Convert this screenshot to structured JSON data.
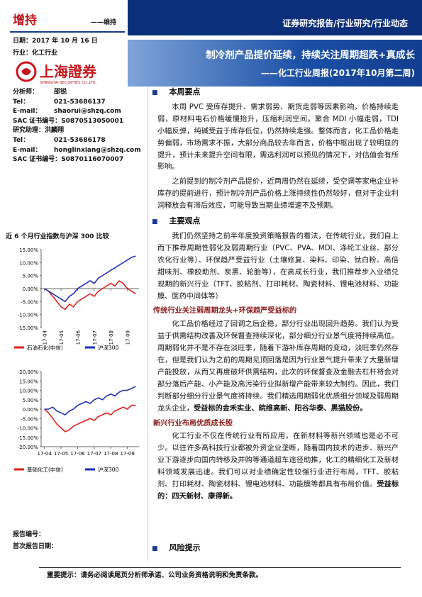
{
  "header": {
    "rating": "增持",
    "rating_change": "——维持",
    "date": "日期：2017 年 10 月 16 日",
    "industry": "行业：化工行业",
    "logo": "上海證券",
    "logo_en": "SHANGHAI SECURITIES CO.,LTD.",
    "category": "证券研究报告/行业研究/行业动态",
    "title": "制冷剂产品提价延续，持续关注周期超跌+真成长",
    "subtitle": "——化工行业周报(2017年10月第二周)"
  },
  "analysts": [
    [
      "分析师：",
      "邵锐"
    ],
    [
      "Tel：",
      "021-53686137"
    ],
    [
      "E-mail：",
      "shaorui@shzq.com"
    ],
    [
      "SAC 证书编号：",
      "S0870513050001"
    ],
    [
      "研究助理：洪麟翔",
      ""
    ],
    [
      "Tel：",
      "021-53686178"
    ],
    [
      "E-mail：",
      "honglinxiang@shzq.com"
    ],
    [
      "SAC 证书编号：",
      "S0870116070007"
    ]
  ],
  "charts_title": "近 6 个月行业指数与沪深 300 比较",
  "chart_data": [
    {
      "type": "line",
      "x": [
        4,
        4.25,
        4.5,
        4.75,
        5,
        5.25,
        5.5,
        5.75,
        6,
        6.25,
        6.5,
        6.75,
        7,
        7.25,
        7.5,
        7.75,
        8,
        8.25,
        8.5,
        8.75,
        9,
        9.25,
        9.5
      ],
      "xlim": [
        3.8,
        9.7
      ],
      "xticks": [
        {
          "value": 4,
          "label": "17-04"
        },
        {
          "value": 5,
          "label": "17-05"
        },
        {
          "value": 6,
          "label": "17-06"
        },
        {
          "value": 7,
          "label": "17-07"
        },
        {
          "value": 8,
          "label": "17-08"
        },
        {
          "value": 9,
          "label": "17-09"
        }
      ],
      "ylim": [
        -15,
        15
      ],
      "yticks": [
        {
          "value": 15,
          "label": "15.00%"
        },
        {
          "value": 10,
          "label": "10.00%"
        },
        {
          "value": 5,
          "label": "5.00%"
        },
        {
          "value": 0,
          "label": "0.00%"
        },
        {
          "value": -5,
          "label": "-5.00%"
        },
        {
          "value": -10,
          "label": "-10.00%"
        },
        {
          "value": -15,
          "label": "-15.00%"
        }
      ],
      "series": [
        {
          "name": "石油石化(中信)",
          "color": "#e0201b",
          "values": [
            0,
            -1,
            -3,
            -5,
            -7,
            -8,
            -6,
            -7,
            -5,
            -4,
            -3,
            -2,
            -3,
            -1,
            0,
            1,
            2,
            1,
            3,
            2,
            0,
            -1,
            -2
          ]
        },
        {
          "name": "沪深300",
          "color": "#1f2fb8",
          "values": [
            0,
            -1,
            -2,
            -3,
            -4,
            -5,
            -3,
            -2,
            0,
            1,
            2,
            3,
            2,
            4,
            5,
            6,
            7,
            8,
            9,
            10,
            11,
            12,
            12.5
          ]
        }
      ]
    },
    {
      "type": "line",
      "x": [
        4,
        4.25,
        4.5,
        4.75,
        5,
        5.25,
        5.5,
        5.75,
        6,
        6.25,
        6.5,
        6.75,
        7,
        7.25,
        7.5,
        7.75,
        8,
        8.25,
        8.5,
        8.75,
        9,
        9.25,
        9.5
      ],
      "xlim": [
        3.8,
        9.7
      ],
      "xticks": [
        {
          "value": 4,
          "label": "17-04"
        },
        {
          "value": 5,
          "label": "17-05"
        },
        {
          "value": 6,
          "label": "17-06"
        },
        {
          "value": 7,
          "label": "17-07"
        },
        {
          "value": 8,
          "label": "17-08"
        },
        {
          "value": 9,
          "label": "17-09"
        }
      ],
      "ylim": [
        -20,
        20
      ],
      "yticks": [
        {
          "value": 20,
          "label": "20.00%"
        },
        {
          "value": 15,
          "label": "15.00%"
        },
        {
          "value": 10,
          "label": "10.00%"
        },
        {
          "value": 5,
          "label": "5.00%"
        },
        {
          "value": 0,
          "label": "0.00%"
        },
        {
          "value": -5,
          "label": "-5.00%"
        },
        {
          "value": -10,
          "label": "-10.00%"
        },
        {
          "value": -15,
          "label": "-15.00%"
        },
        {
          "value": -20,
          "label": "-20.00%"
        }
      ],
      "series": [
        {
          "name": "基础化工(中信)",
          "color": "#e0201b",
          "values": [
            0,
            -2,
            -5,
            -8,
            -10,
            -12,
            -11,
            -9,
            -8,
            -7,
            -6,
            -5,
            -6,
            -4,
            -3,
            -2,
            -3,
            -1,
            0,
            1,
            0,
            2,
            2
          ]
        },
        {
          "name": "沪深300",
          "color": "#1f2fb8",
          "values": [
            0,
            0,
            1,
            -1,
            -2,
            -3,
            -1,
            0,
            2,
            3,
            4,
            3,
            5,
            6,
            5,
            7,
            8,
            7,
            9,
            10,
            10,
            11,
            12
          ]
        }
      ]
    }
  ],
  "report_no": "报告编号：",
  "first_date": "首次报告日期：",
  "sections": [
    {
      "heading": "本周要点",
      "paragraphs": [
        {
          "text": "本周 PVC 受库存提升、需求弱势、期货走弱等因素影响，价格持续走弱，原材料电石价格缓慢抬升，压缩利润空间。聚合 MDI 小幅走弱，TDI 小幅反弹，纯碱受益于库存低位，仍然持续走强。整体而言，化工品价格走势偏弱，市场需求不振，大部分商品较去年而言，价格中枢出现了较明显的提升，预计未来提升空间有限，需选利润可以预见的情况下，对估值会有所影响。"
        },
        {
          "text": "之前提到的制冷剂产品提价，近两周仍然在延续，受空调等家电企业补库存的提前进行，预计制冷剂产品价格上涨持续性仍然较好，但对于企业利润释放会有滞后效应，可能导致当期业绩增速不及预期。"
        }
      ]
    },
    {
      "heading": "主要观点",
      "paragraphs": [
        {
          "text": "我们仍然坚持之前半年度投资策略报告的看法，在传统行业，我们自上而下推荐周期性弱化及弱周期行业（PVC、PVA、MDI、涤纶工业丝、部分农化行业等）、环保趋严受益行业（土壤修复、染料、印染、钛白粉、高倍甜味剂、橡胶助剂、炭黑、轮胎等），在高成长行业，我们推荐步入业绩兑现期的新兴行业（TFT、胶粘剂、打印耗材、陶瓷材料、锂电池材料、功能膜、医药中间体等）"
        },
        {
          "subheading": "传统行业关注弱周期龙头+环保趋严受益标的"
        },
        {
          "text": "化工品价格经过了回调之后企稳，部分行业出现回升趋势。我们认为受益于供需结构改善及环保督查持续深化，部分细分行业景气度将持续高位。周期弱化并不是不存在淡旺季，随着下游补库存周期的变动，淡旺季仍然存在，但是我们认为之前的周期见顶回落是因为行业景气提升带来了大量新增产能投放，从而又再度破坏供需结构，此次的环保督查及金融去杠杆将会对部分落后产能、小产能及高污染行业拟新增产能带来较大制约。因此，我们判断部分细分行业景气度将持续。我们精选周期弱化优质细分领域及弱周期龙头企业，",
          "bold": "受益标的金禾实业、皖维高新、阳谷华泰、黑猫股份。"
        },
        {
          "subheading": "新兴行业布局优质成长股"
        },
        {
          "text": "化工行业不仅在传统行业有所应用，在新材料等新兴领域也是必不可少。以往许多高科技行业都被外资企业垄断，随着国内技术的进步、新兴产业下游逐步向国内转移及并购等通道超车途径助推，化工的精细化工及新材料领域发展迅速。我们可以对业绩确定性较强行业进行布局，TFT、胶粘剂、打印耗材、陶瓷材料、锂电池材料、功能膜等都具有布局价值。",
          "bold": "受益标的：四天新材、康得新。"
        }
      ]
    }
  ],
  "risk_heading": "风险提示",
  "footer": "重要提示：请务必阅读尾页分析师承诺、公司业务资格说明和免责条款。"
}
